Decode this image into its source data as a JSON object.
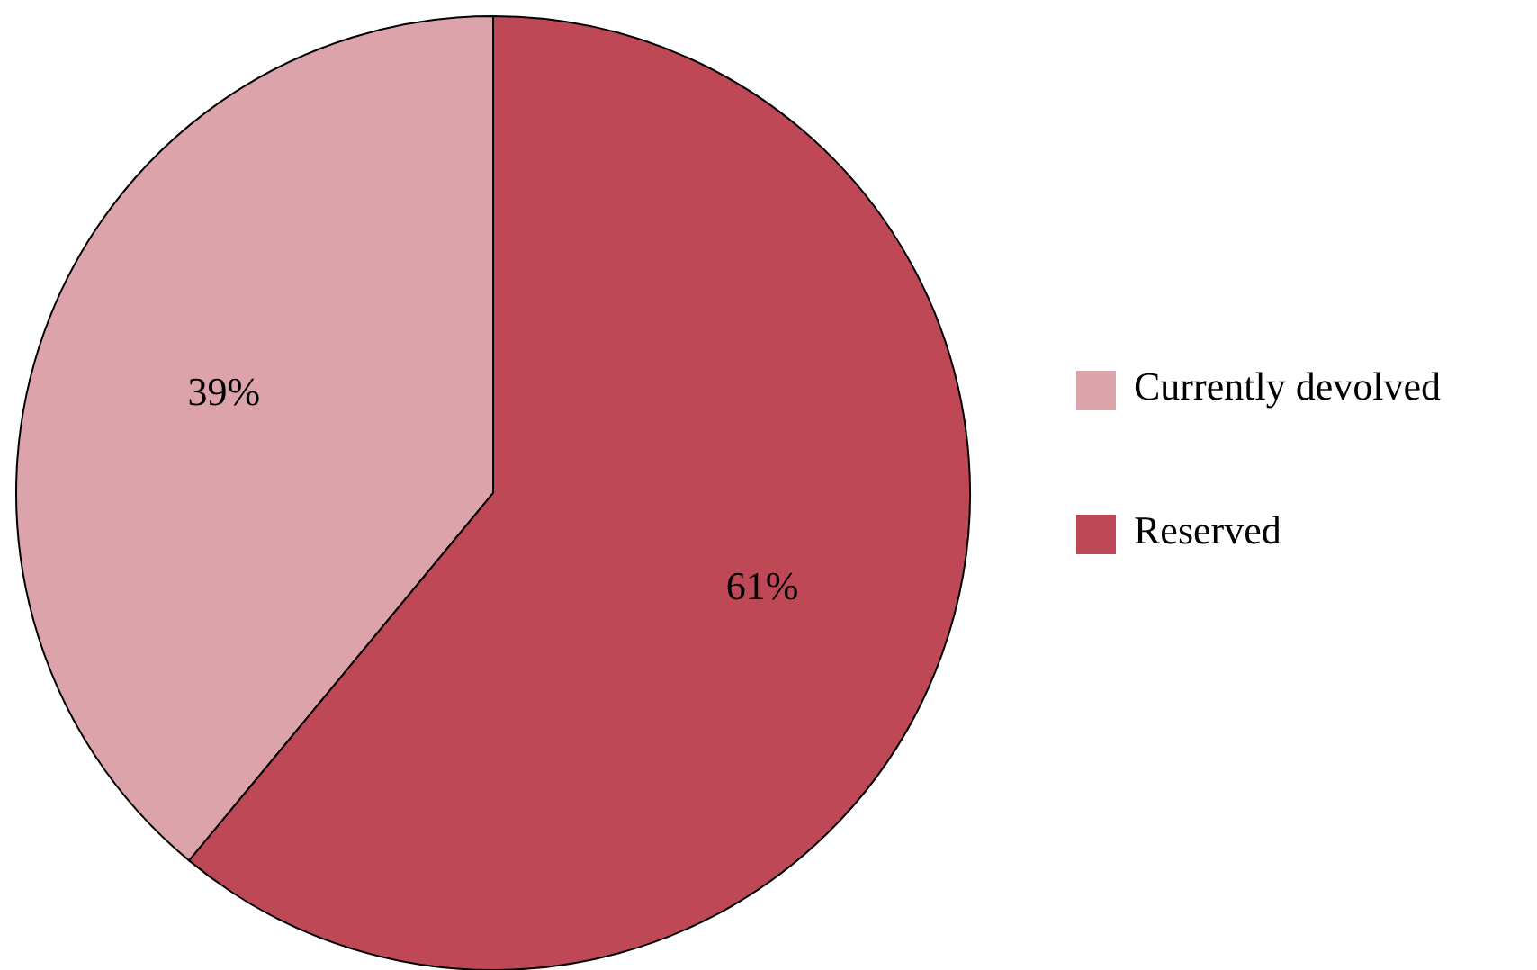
{
  "chart_data": {
    "type": "pie",
    "categories": [
      "Currently devolved",
      "Reserved"
    ],
    "values": [
      39,
      61
    ],
    "colors": [
      "#dda3aa",
      "#be4856"
    ],
    "value_labels": [
      "39%",
      "61%"
    ],
    "legend": "right"
  }
}
